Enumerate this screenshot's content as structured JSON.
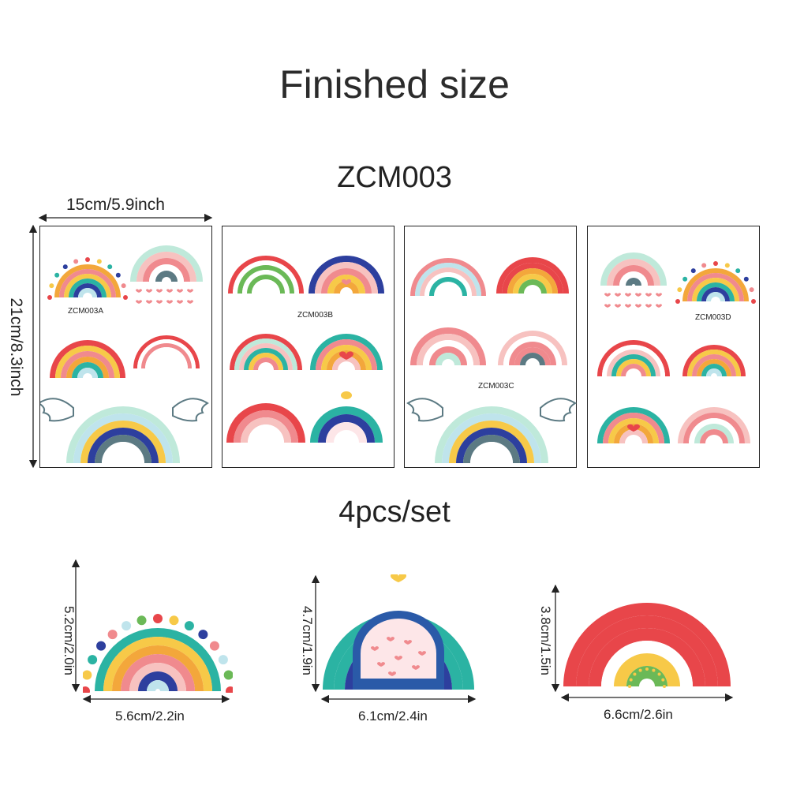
{
  "header": {
    "title": "Finished size",
    "product_code": "ZCM003",
    "set_count": "4pcs/set"
  },
  "sheet_size": {
    "width_label": "15cm/5.9inch",
    "height_label": "21cm/8.3inch"
  },
  "sheets": [
    {
      "label": "ZCM003A"
    },
    {
      "label": "ZCM003B"
    },
    {
      "label": "ZCM003C"
    },
    {
      "label": "ZCM003D"
    }
  ],
  "samples": [
    {
      "width_label": "5.6cm/2.2in",
      "height_label": "5.2cm/2.0in"
    },
    {
      "width_label": "6.1cm/2.4in",
      "height_label": "4.7cm/1.9in"
    },
    {
      "width_label": "6.6cm/2.6in",
      "height_label": "3.8cm/1.5in"
    }
  ],
  "colors": {
    "red": "#e8464a",
    "pink": "#f08a8e",
    "light_pink": "#f7c2c0",
    "yellow": "#f7c948",
    "orange": "#f3a73b",
    "teal": "#2bb3a3",
    "mint": "#bfe9da",
    "slate": "#5c7a83",
    "navy": "#2d3f9e",
    "light_blue": "#bfe4ec",
    "green": "#6bb957"
  }
}
